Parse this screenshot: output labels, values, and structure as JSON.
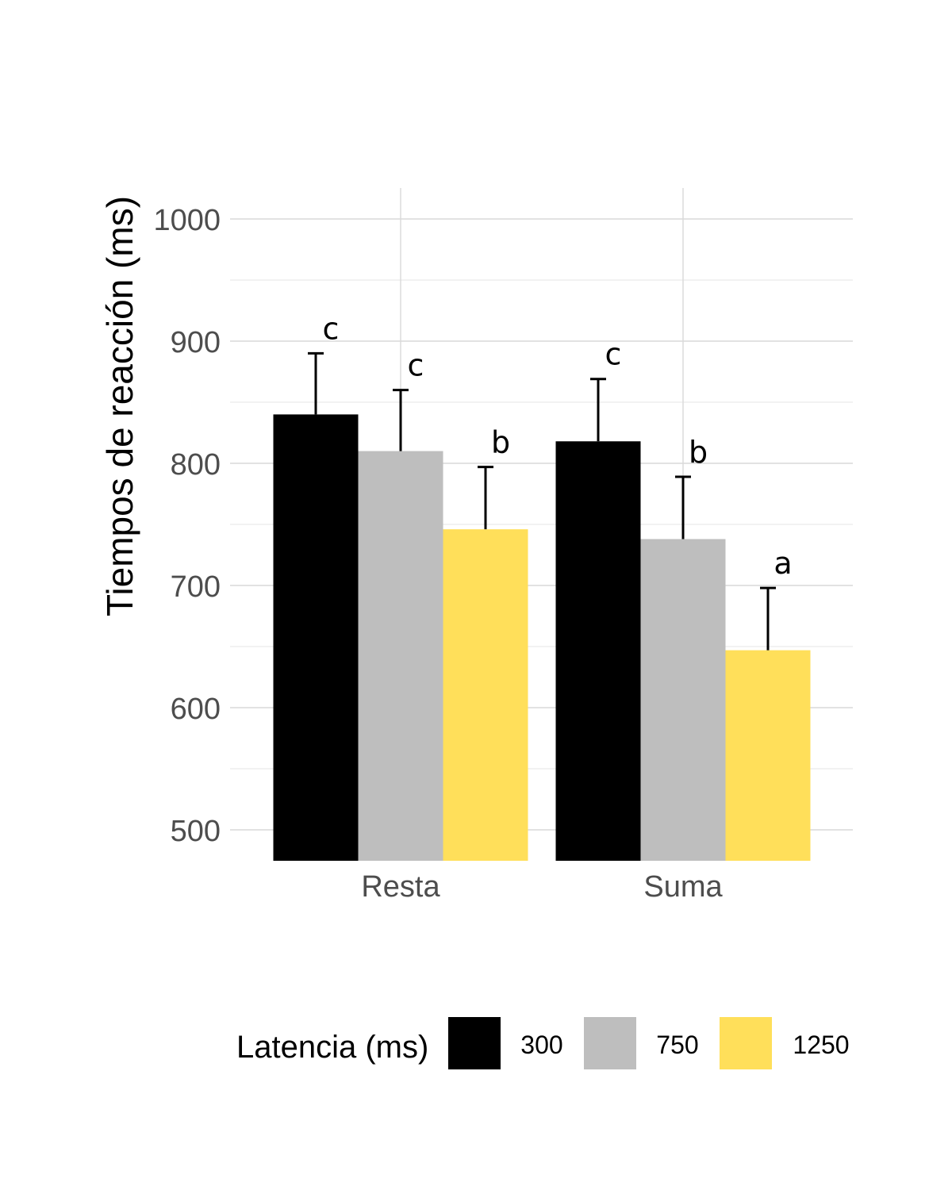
{
  "chart_data": {
    "type": "bar",
    "ylabel": "Tiempos de reacción (ms)",
    "yticks": [
      500,
      600,
      700,
      800,
      900,
      1000
    ],
    "ylim": [
      475,
      1025
    ],
    "grid": true,
    "legend_position": "bottom",
    "legend": {
      "title": "Latencia (ms)",
      "entries": [
        {
          "label": "300",
          "color": "#000000"
        },
        {
          "label": "750",
          "color": "#bebebe"
        },
        {
          "label": "1250",
          "color": "#ffdf5a"
        }
      ]
    },
    "categories": [
      "Resta",
      "Suma"
    ],
    "series": [
      {
        "name": "300",
        "color": "#000000",
        "values": [
          840,
          818
        ],
        "error": [
          50,
          51
        ],
        "labels": [
          "c",
          "c"
        ]
      },
      {
        "name": "750",
        "color": "#bebebe",
        "values": [
          810,
          738
        ],
        "error": [
          50,
          51
        ],
        "labels": [
          "c",
          "b"
        ]
      },
      {
        "name": "1250",
        "color": "#ffdf5a",
        "values": [
          746,
          647
        ],
        "error": [
          51,
          51
        ],
        "labels": [
          "b",
          "a"
        ]
      }
    ]
  }
}
